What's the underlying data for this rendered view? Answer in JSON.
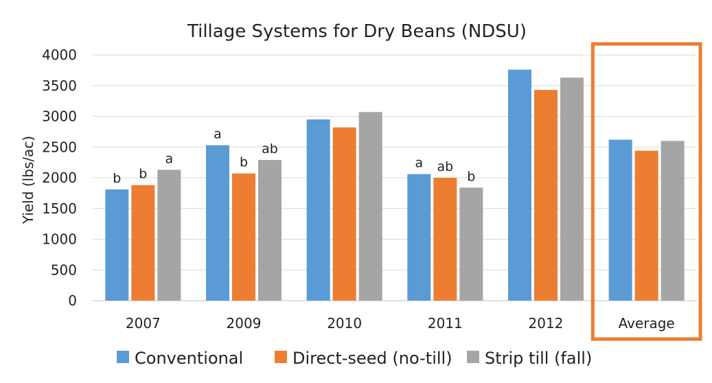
{
  "chart_data": {
    "type": "bar",
    "title": "Tillage Systems for Dry Beans (NDSU)",
    "xlabel": "",
    "ylabel": "Yield (lbs/ac)",
    "ylim": [
      0,
      4000
    ],
    "yticks": [
      0,
      500,
      1000,
      1500,
      2000,
      2500,
      3000,
      3500,
      4000
    ],
    "yticks_labels": [
      "0",
      "500",
      "1000",
      "1500",
      "2000",
      "2500",
      "3000",
      "3500",
      "4000"
    ],
    "grid": true,
    "legend_position": "bottom",
    "categories": [
      "2007",
      "2009",
      "2010",
      "2011",
      "2012",
      "Average"
    ],
    "highlighted_category": "Average",
    "highlight_color": "#ED7D31",
    "series": [
      {
        "name": "Conventional",
        "color": "#5B9BD5",
        "values": [
          1810,
          2530,
          2950,
          2060,
          3760,
          2620
        ],
        "labels": [
          "b",
          "a",
          "",
          "a",
          "",
          ""
        ]
      },
      {
        "name": "Direct-seed (no-till)",
        "color": "#ED7D31",
        "values": [
          1880,
          2070,
          2820,
          2000,
          3430,
          2440
        ],
        "labels": [
          "b",
          "b",
          "",
          "ab",
          "",
          ""
        ]
      },
      {
        "name": "Strip till (fall)",
        "color": "#A5A5A5",
        "values": [
          2130,
          2290,
          3070,
          1840,
          3630,
          2600
        ],
        "labels": [
          "a",
          "ab",
          "",
          "b",
          "",
          ""
        ]
      }
    ]
  }
}
